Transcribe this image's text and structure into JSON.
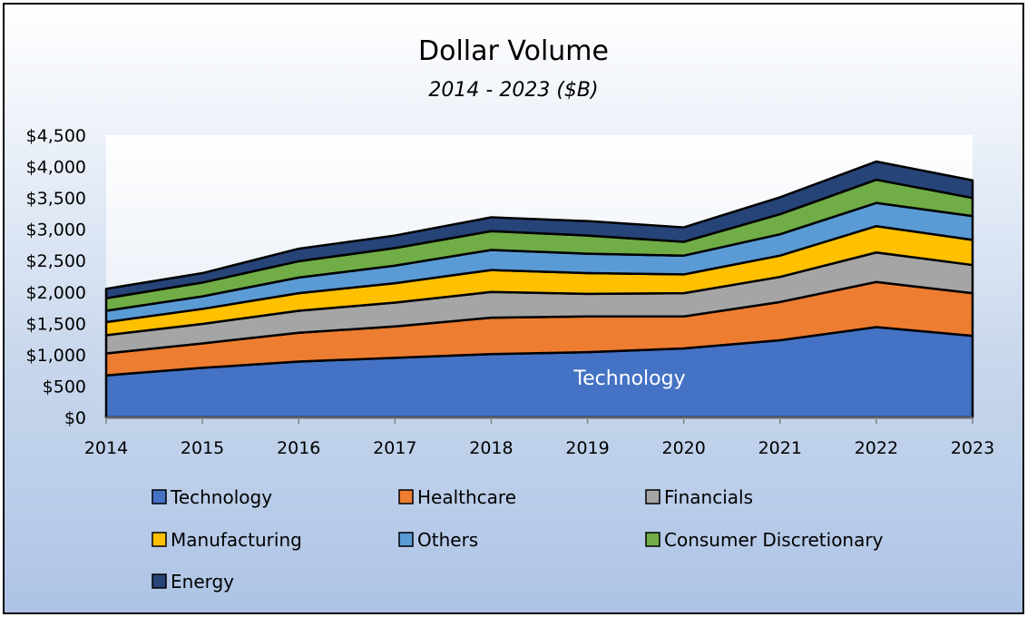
{
  "chart_data": {
    "type": "area",
    "stacked": true,
    "title": "Dollar Volume",
    "subtitle": "2014 - 2023 ($B)",
    "categories": [
      "2014",
      "2015",
      "2016",
      "2017",
      "2018",
      "2019",
      "2020",
      "2021",
      "2022",
      "2023"
    ],
    "ylim": [
      0,
      4500
    ],
    "yticks": [
      0,
      500,
      1000,
      1500,
      2000,
      2500,
      3000,
      3500,
      4000,
      4500
    ],
    "ytick_labels": [
      "$0",
      "$500",
      "$1,000",
      "$1,500",
      "$2,000",
      "$2,500",
      "$3,000",
      "$3,500",
      "$4,000",
      "$4,500"
    ],
    "series": [
      {
        "name": "Technology",
        "color": "#4472C4",
        "values": [
          670,
          790,
          890,
          950,
          1010,
          1040,
          1100,
          1230,
          1440,
          1300
        ]
      },
      {
        "name": "Healthcare",
        "color": "#ED7D31",
        "values": [
          350,
          390,
          460,
          500,
          580,
          570,
          510,
          610,
          720,
          680
        ]
      },
      {
        "name": "Financials",
        "color": "#A5A5A5",
        "values": [
          290,
          310,
          350,
          380,
          410,
          360,
          370,
          400,
          470,
          450
        ]
      },
      {
        "name": "Manufacturing",
        "color": "#FFC000",
        "values": [
          210,
          240,
          280,
          310,
          350,
          330,
          300,
          340,
          420,
          400
        ]
      },
      {
        "name": "Others",
        "color": "#5B9BD5",
        "values": [
          180,
          200,
          250,
          280,
          320,
          310,
          300,
          340,
          370,
          380
        ]
      },
      {
        "name": "Consumer Discretionary",
        "color": "#70AD47",
        "values": [
          200,
          220,
          260,
          280,
          300,
          290,
          220,
          320,
          370,
          290
        ]
      },
      {
        "name": "Energy",
        "color": "#264478",
        "values": [
          150,
          150,
          200,
          200,
          220,
          230,
          230,
          270,
          290,
          280
        ]
      }
    ],
    "annotation": "Technology",
    "legend_position": "bottom",
    "grid": false
  }
}
